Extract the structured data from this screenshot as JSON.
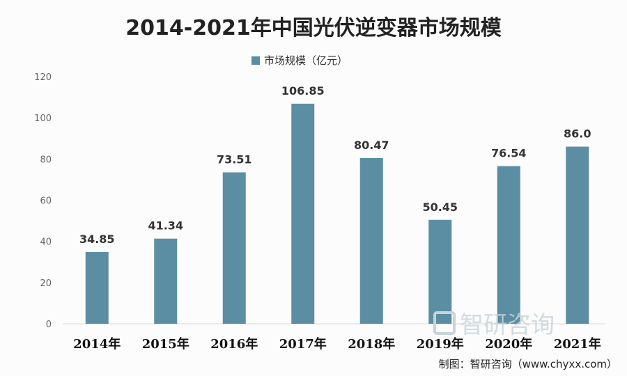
{
  "chart_data": {
    "type": "bar",
    "title": "2014-2021年中国光伏逆变器市场规模",
    "categories": [
      "2014年",
      "2015年",
      "2016年",
      "2017年",
      "2018年",
      "2019年",
      "2020年",
      "2021年"
    ],
    "series": [
      {
        "name": "市场规模（亿元）",
        "values": [
          34.85,
          41.34,
          73.51,
          106.85,
          80.47,
          50.45,
          76.54,
          86.0
        ],
        "labels": [
          "34.85",
          "41.34",
          "73.51",
          "106.85",
          "80.47",
          "50.45",
          "76.54",
          "86.0"
        ]
      }
    ],
    "ylim": [
      0,
      120
    ],
    "yticks": [
      "0",
      "20",
      "40",
      "60",
      "80",
      "100",
      "120"
    ],
    "legend_position": "top-center",
    "grid": false,
    "colors": {
      "bar": "#5b8ea3"
    }
  },
  "watermark": {
    "text": "智研咨询"
  },
  "source": "制图：智研咨询（www.chyxx.com）"
}
